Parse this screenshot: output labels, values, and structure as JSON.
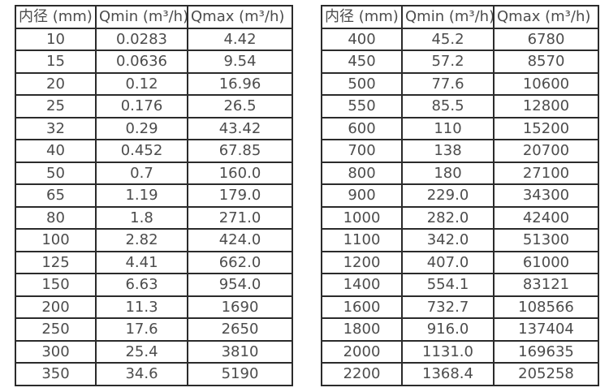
{
  "page": {
    "background_color": "#ffffff",
    "border_color": "#2b2b2b",
    "text_color": "#4c4c4c"
  },
  "tables": [
    {
      "id": "left",
      "headers": [
        "内径 (mm)",
        "Qmin (m³/h)",
        "Qmax (m³/h)"
      ],
      "rows": [
        [
          "10",
          "0.0283",
          "4.42"
        ],
        [
          "15",
          "0.0636",
          "9.54"
        ],
        [
          "20",
          "0.12",
          "16.96"
        ],
        [
          "25",
          "0.176",
          "26.5"
        ],
        [
          "32",
          "0.29",
          "43.42"
        ],
        [
          "40",
          "0.452",
          "67.85"
        ],
        [
          "50",
          "0.7",
          "160.0"
        ],
        [
          "65",
          "1.19",
          "179.0"
        ],
        [
          "80",
          "1.8",
          "271.0"
        ],
        [
          "100",
          "2.82",
          "424.0"
        ],
        [
          "125",
          "4.41",
          "662.0"
        ],
        [
          "150",
          "6.63",
          "954.0"
        ],
        [
          "200",
          "11.3",
          "1690"
        ],
        [
          "250",
          "17.6",
          "2650"
        ],
        [
          "300",
          "25.4",
          "3810"
        ],
        [
          "350",
          "34.6",
          "5190"
        ]
      ]
    },
    {
      "id": "right",
      "headers": [
        "内径 (mm)",
        "Qmin (m³/h)",
        "Qmax (m³/h)"
      ],
      "rows": [
        [
          "400",
          "45.2",
          "6780"
        ],
        [
          "450",
          "57.2",
          "8570"
        ],
        [
          "500",
          "77.6",
          "10600"
        ],
        [
          "550",
          "85.5",
          "12800"
        ],
        [
          "600",
          "110",
          "15200"
        ],
        [
          "700",
          "138",
          "20700"
        ],
        [
          "800",
          "180",
          "27100"
        ],
        [
          "900",
          "229.0",
          "34300"
        ],
        [
          "1000",
          "282.0",
          "42400"
        ],
        [
          "1100",
          "342.0",
          "51300"
        ],
        [
          "1200",
          "407.0",
          "61000"
        ],
        [
          "1400",
          "554.1",
          "83121"
        ],
        [
          "1600",
          "732.7",
          "108566"
        ],
        [
          "1800",
          "916.0",
          "137404"
        ],
        [
          "2000",
          "1131.0",
          "169635"
        ],
        [
          "2200",
          "1368.4",
          "205258"
        ]
      ]
    }
  ]
}
